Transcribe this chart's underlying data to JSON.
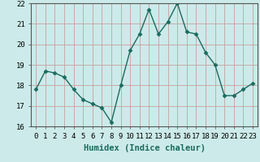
{
  "x": [
    0,
    1,
    2,
    3,
    4,
    5,
    6,
    7,
    8,
    9,
    10,
    11,
    12,
    13,
    14,
    15,
    16,
    17,
    18,
    19,
    20,
    21,
    22,
    23
  ],
  "y": [
    17.8,
    18.7,
    18.6,
    18.4,
    17.8,
    17.3,
    17.1,
    16.9,
    16.2,
    18.0,
    19.7,
    20.5,
    21.7,
    20.5,
    21.1,
    22.0,
    20.6,
    20.5,
    19.6,
    19.0,
    17.5,
    17.5,
    17.8,
    18.1
  ],
  "xlabel": "Humidex (Indice chaleur)",
  "ylim": [
    16,
    22
  ],
  "xlim": [
    -0.5,
    23.5
  ],
  "yticks": [
    16,
    17,
    18,
    19,
    20,
    21,
    22
  ],
  "xticks": [
    0,
    1,
    2,
    3,
    4,
    5,
    6,
    7,
    8,
    9,
    10,
    11,
    12,
    13,
    14,
    15,
    16,
    17,
    18,
    19,
    20,
    21,
    22,
    23
  ],
  "line_color": "#1a6b5e",
  "marker": "D",
  "marker_size": 2.5,
  "bg_color": "#cceaea",
  "grid_color": "#c8a0a0",
  "tick_label_fontsize": 6.5,
  "xlabel_fontsize": 7.5
}
